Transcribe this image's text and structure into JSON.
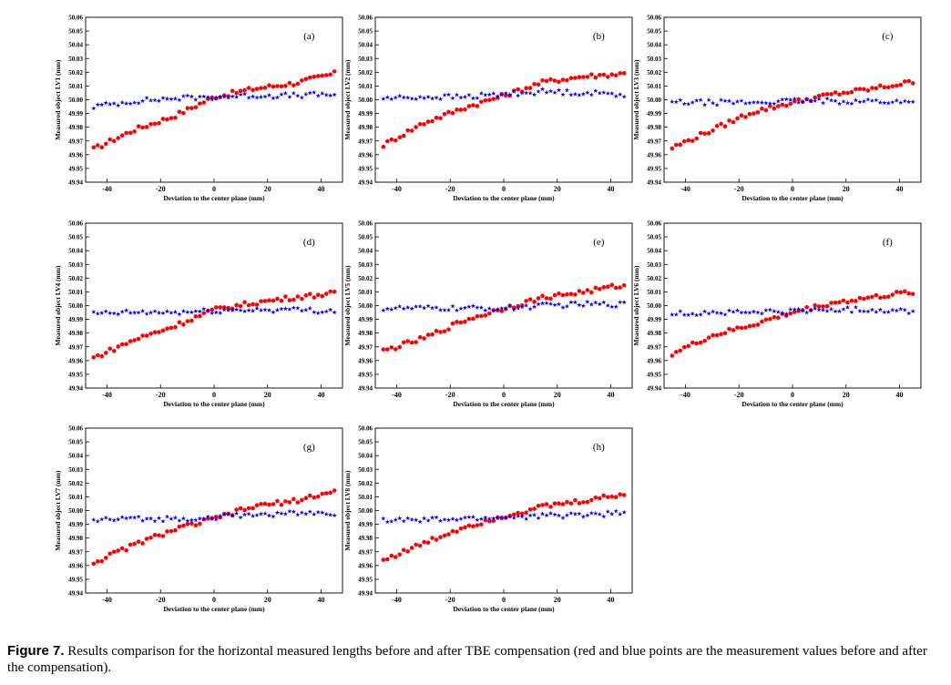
{
  "figure": {
    "label": "Figure 7.",
    "caption": " Results comparison for the horizontal measured lengths before and after TBE compensation (red and blue points are the measurement values before and after the compensation)."
  },
  "chart_data": [
    {
      "type": "scatter",
      "panel_label": "(a)",
      "xlabel": "Deviation to the center plane (mm)",
      "ylabel": "Measured object LV1 (mm)",
      "xlim": [
        -48,
        48
      ],
      "ylim": [
        49.94,
        50.06
      ],
      "x_ticks": [
        -40,
        -20,
        0,
        20,
        40
      ],
      "y_ticks": [
        "49.94",
        "49.95",
        "49.96",
        "49.97",
        "49.98",
        "49.99",
        "50.00",
        "50.01",
        "50.02",
        "50.03",
        "50.04",
        "50.05",
        "50.06"
      ],
      "grid": false,
      "series": [
        {
          "color": "#ff0000",
          "marker": "circle",
          "points": [
            [
              -45,
              49.964
            ],
            [
              -30,
              49.978
            ],
            [
              -15,
              49.988
            ],
            [
              0,
              50.002
            ],
            [
              15,
              50.008
            ],
            [
              30,
              50.012
            ],
            [
              45,
              50.019
            ]
          ]
        },
        {
          "color": "#0000ff",
          "marker": "star",
          "points": [
            [
              -45,
              49.995
            ],
            [
              -30,
              49.999
            ],
            [
              -15,
              50.001
            ],
            [
              0,
              50.002
            ],
            [
              15,
              50.003
            ],
            [
              30,
              50.003
            ],
            [
              45,
              50.004
            ]
          ]
        }
      ]
    },
    {
      "type": "scatter",
      "panel_label": "(b)",
      "xlabel": "Deviation to the center plane (mm)",
      "ylabel": "Measured object LV2 (mm)",
      "xlim": [
        -48,
        48
      ],
      "ylim": [
        49.94,
        50.06
      ],
      "x_ticks": [
        -40,
        -20,
        0,
        20,
        40
      ],
      "y_ticks": [
        "49.94",
        "49.95",
        "49.96",
        "49.97",
        "49.98",
        "49.99",
        "50.00",
        "50.01",
        "50.02",
        "50.03",
        "50.04",
        "50.05",
        "50.06"
      ],
      "grid": false,
      "series": [
        {
          "color": "#ff0000",
          "marker": "circle",
          "points": [
            [
              -45,
              49.967
            ],
            [
              -30,
              49.983
            ],
            [
              -15,
              49.994
            ],
            [
              0,
              50.003
            ],
            [
              15,
              50.013
            ],
            [
              30,
              50.017
            ],
            [
              45,
              50.019
            ]
          ]
        },
        {
          "color": "#0000ff",
          "marker": "star",
          "points": [
            [
              -45,
              50.001
            ],
            [
              -30,
              50.002
            ],
            [
              -15,
              50.002
            ],
            [
              0,
              50.004
            ],
            [
              15,
              50.006
            ],
            [
              30,
              50.005
            ],
            [
              45,
              50.004
            ]
          ]
        }
      ]
    },
    {
      "type": "scatter",
      "panel_label": "(c)",
      "xlabel": "Deviation to the center plane (mm)",
      "ylabel": "Measured object LV3 (mm)",
      "xlim": [
        -48,
        48
      ],
      "ylim": [
        49.94,
        50.06
      ],
      "x_ticks": [
        -40,
        -20,
        0,
        20,
        40
      ],
      "y_ticks": [
        "49.94",
        "49.95",
        "49.96",
        "49.97",
        "49.98",
        "49.99",
        "50.00",
        "50.01",
        "50.02",
        "50.03",
        "50.04",
        "50.05",
        "50.06"
      ],
      "grid": false,
      "series": [
        {
          "color": "#ff0000",
          "marker": "circle",
          "points": [
            [
              -45,
              49.965
            ],
            [
              -30,
              49.978
            ],
            [
              -15,
              49.991
            ],
            [
              0,
              49.998
            ],
            [
              15,
              50.004
            ],
            [
              30,
              50.008
            ],
            [
              45,
              50.013
            ]
          ]
        },
        {
          "color": "#0000ff",
          "marker": "star",
          "points": [
            [
              -45,
              49.998
            ],
            [
              -30,
              49.998
            ],
            [
              -15,
              49.998
            ],
            [
              0,
              49.999
            ],
            [
              15,
              49.999
            ],
            [
              30,
              49.999
            ],
            [
              45,
              49.998
            ]
          ]
        }
      ]
    },
    {
      "type": "scatter",
      "panel_label": "(d)",
      "xlabel": "Deviation to the center plane (mm)",
      "ylabel": "Measured object LV4 (mm)",
      "xlim": [
        -48,
        48
      ],
      "ylim": [
        49.94,
        50.06
      ],
      "x_ticks": [
        -40,
        -20,
        0,
        20,
        40
      ],
      "y_ticks": [
        "49.94",
        "49.95",
        "49.96",
        "49.97",
        "49.98",
        "49.99",
        "50.00",
        "50.01",
        "50.02",
        "50.03",
        "50.04",
        "50.05",
        "50.06"
      ],
      "grid": false,
      "series": [
        {
          "color": "#ff0000",
          "marker": "circle",
          "points": [
            [
              -45,
              49.962
            ],
            [
              -30,
              49.975
            ],
            [
              -15,
              49.985
            ],
            [
              0,
              49.997
            ],
            [
              15,
              50.002
            ],
            [
              30,
              50.006
            ],
            [
              45,
              50.009
            ]
          ]
        },
        {
          "color": "#0000ff",
          "marker": "star",
          "points": [
            [
              -45,
              49.994
            ],
            [
              -30,
              49.995
            ],
            [
              -15,
              49.995
            ],
            [
              0,
              49.996
            ],
            [
              15,
              49.997
            ],
            [
              30,
              49.997
            ],
            [
              45,
              49.996
            ]
          ]
        }
      ]
    },
    {
      "type": "scatter",
      "panel_label": "(e)",
      "xlabel": "Deviation to the center plane (mm)",
      "ylabel": "Measured object LV5 (mm)",
      "xlim": [
        -48,
        48
      ],
      "ylim": [
        49.94,
        50.06
      ],
      "x_ticks": [
        -40,
        -20,
        0,
        20,
        40
      ],
      "y_ticks": [
        "49.94",
        "49.95",
        "49.96",
        "49.97",
        "49.98",
        "49.99",
        "50.00",
        "50.01",
        "50.02",
        "50.03",
        "50.04",
        "50.05",
        "50.06"
      ],
      "grid": false,
      "series": [
        {
          "color": "#ff0000",
          "marker": "circle",
          "points": [
            [
              -45,
              49.967
            ],
            [
              -30,
              49.976
            ],
            [
              -15,
              49.989
            ],
            [
              0,
              49.998
            ],
            [
              15,
              50.006
            ],
            [
              30,
              50.01
            ],
            [
              45,
              50.015
            ]
          ]
        },
        {
          "color": "#0000ff",
          "marker": "star",
          "points": [
            [
              -45,
              49.998
            ],
            [
              -30,
              49.998
            ],
            [
              -15,
              49.998
            ],
            [
              0,
              49.998
            ],
            [
              15,
              50.0
            ],
            [
              30,
              50.001
            ],
            [
              45,
              50.001
            ]
          ]
        }
      ]
    },
    {
      "type": "scatter",
      "panel_label": "(f)",
      "xlabel": "Deviation to the center plane (mm)",
      "ylabel": "Measured object LV6 (mm)",
      "xlim": [
        -48,
        48
      ],
      "ylim": [
        49.94,
        50.06
      ],
      "x_ticks": [
        -40,
        -20,
        0,
        20,
        40
      ],
      "y_ticks": [
        "49.94",
        "49.95",
        "49.96",
        "49.97",
        "49.98",
        "49.99",
        "50.00",
        "50.01",
        "50.02",
        "50.03",
        "50.04",
        "50.05",
        "50.06"
      ],
      "grid": false,
      "series": [
        {
          "color": "#ff0000",
          "marker": "circle",
          "points": [
            [
              -45,
              49.965
            ],
            [
              -30,
              49.978
            ],
            [
              -15,
              49.986
            ],
            [
              0,
              49.995
            ],
            [
              15,
              50.002
            ],
            [
              30,
              50.006
            ],
            [
              45,
              50.01
            ]
          ]
        },
        {
          "color": "#0000ff",
          "marker": "star",
          "points": [
            [
              -45,
              49.994
            ],
            [
              -30,
              49.995
            ],
            [
              -15,
              49.995
            ],
            [
              0,
              49.996
            ],
            [
              15,
              49.997
            ],
            [
              30,
              49.997
            ],
            [
              45,
              49.996
            ]
          ]
        }
      ]
    },
    {
      "type": "scatter",
      "panel_label": "(g)",
      "xlabel": "Deviation to the center plane (mm)",
      "ylabel": "Measured object LV7 (mm)",
      "xlim": [
        -48,
        48
      ],
      "ylim": [
        49.94,
        50.06
      ],
      "x_ticks": [
        -40,
        -20,
        0,
        20,
        40
      ],
      "y_ticks": [
        "49.94",
        "49.95",
        "49.96",
        "49.97",
        "49.98",
        "49.99",
        "50.00",
        "50.01",
        "50.02",
        "50.03",
        "50.04",
        "50.05",
        "50.06"
      ],
      "grid": false,
      "series": [
        {
          "color": "#ff0000",
          "marker": "circle",
          "points": [
            [
              -45,
              49.962
            ],
            [
              -30,
              49.975
            ],
            [
              -15,
              49.986
            ],
            [
              0,
              49.994
            ],
            [
              15,
              50.003
            ],
            [
              30,
              50.007
            ],
            [
              45,
              50.014
            ]
          ]
        },
        {
          "color": "#0000ff",
          "marker": "star",
          "points": [
            [
              -45,
              49.993
            ],
            [
              -30,
              49.994
            ],
            [
              -15,
              49.994
            ],
            [
              0,
              49.995
            ],
            [
              15,
              49.997
            ],
            [
              30,
              49.998
            ],
            [
              45,
              49.998
            ]
          ]
        }
      ]
    },
    {
      "type": "scatter",
      "panel_label": "(h)",
      "xlabel": "Deviation to the center plane (mm)",
      "ylabel": "Measured object LV8 (mm)",
      "xlim": [
        -48,
        48
      ],
      "ylim": [
        49.94,
        50.06
      ],
      "x_ticks": [
        -40,
        -20,
        0,
        20,
        40
      ],
      "y_ticks": [
        "49.94",
        "49.95",
        "49.96",
        "49.97",
        "49.98",
        "49.99",
        "50.00",
        "50.01",
        "50.02",
        "50.03",
        "50.04",
        "50.05",
        "50.06"
      ],
      "grid": false,
      "series": [
        {
          "color": "#ff0000",
          "marker": "circle",
          "points": [
            [
              -45,
              49.964
            ],
            [
              -30,
              49.976
            ],
            [
              -15,
              49.988
            ],
            [
              0,
              49.996
            ],
            [
              15,
              50.003
            ],
            [
              30,
              50.007
            ],
            [
              45,
              50.012
            ]
          ]
        },
        {
          "color": "#0000ff",
          "marker": "star",
          "points": [
            [
              -45,
              49.993
            ],
            [
              -30,
              49.993
            ],
            [
              -15,
              49.994
            ],
            [
              0,
              49.995
            ],
            [
              15,
              49.996
            ],
            [
              30,
              49.997
            ],
            [
              45,
              49.998
            ]
          ]
        }
      ]
    }
  ]
}
